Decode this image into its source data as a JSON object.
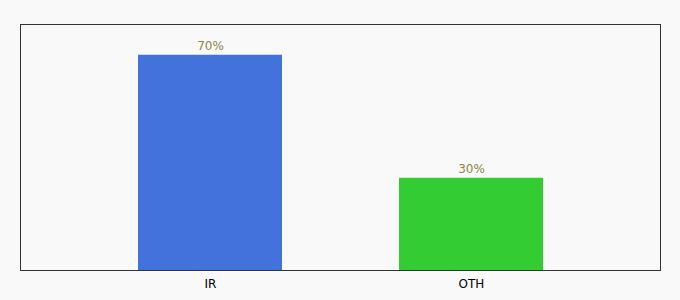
{
  "chart_data": {
    "type": "bar",
    "categories": [
      "IR",
      "OTH"
    ],
    "values": [
      70,
      30
    ],
    "value_labels": [
      "70%",
      "30%"
    ],
    "colors": [
      "#4472DD",
      "#33CC33"
    ],
    "ylim": [
      0,
      80
    ],
    "data_labels": true,
    "tick_labels": "x",
    "grid": false
  }
}
